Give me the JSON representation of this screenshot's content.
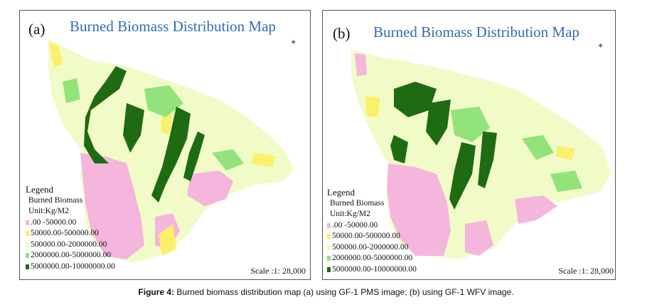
{
  "panels": [
    {
      "letter": "(a)",
      "title": "Burned Biomass Distribution Map",
      "legend_title": "Legend",
      "legend_layer": "Burned Biomass",
      "legend_unit": "Unit:Kg/M2",
      "scale": "Scale :1: 28,000"
    },
    {
      "letter": "(b)",
      "title": "Burned Biomass Distribution Map",
      "legend_title": "Legend",
      "legend_layer": "Burned Biomass",
      "legend_unit": "Unit:Kg/M2",
      "scale": "Scale :1: 28,000"
    }
  ],
  "legend_classes": [
    {
      "label": ".00 -50000.00",
      "color": "#f4b6dc"
    },
    {
      "label": "50000.00-500000.00",
      "color": "#fbf06a"
    },
    {
      "label": "500000.00-2000000.00",
      "color": "#eefcb8"
    },
    {
      "label": "2000000.00-5000000.00",
      "color": "#92e37a"
    },
    {
      "label": "5000000.00-10000000.00",
      "color": "#1f6b12"
    }
  ],
  "compass_icon": "compass-rose-icon",
  "caption": {
    "label": "Figure 4:",
    "text": " Burned biomass distribution map (a) using GF-1 PMS image; (b) using GF-1 WFV image."
  }
}
